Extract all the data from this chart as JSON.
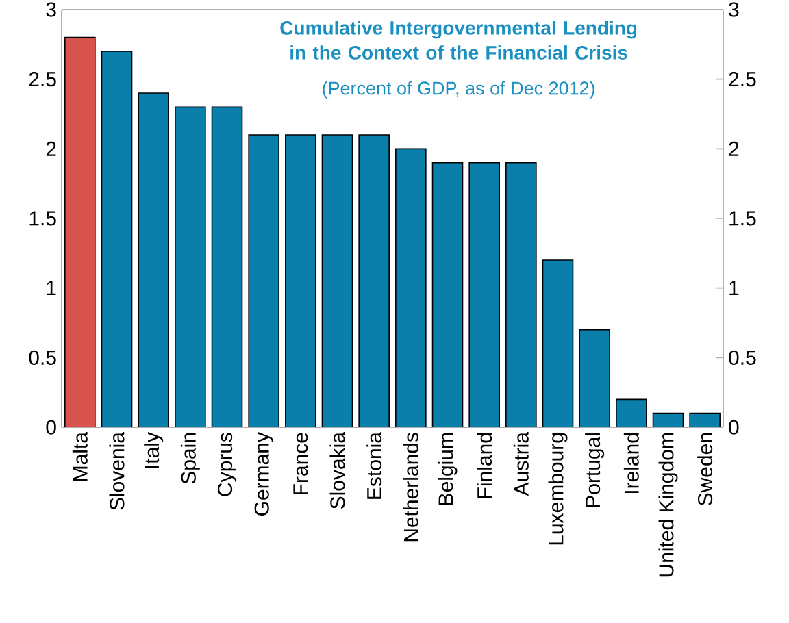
{
  "chart_data": {
    "type": "bar",
    "title": "Cumulative Intergovernmental Lending in the Context of the Financial Crisis",
    "subtitle": "(Percent of GDP, as of Dec 2012)",
    "categories": [
      "Malta",
      "Slovenia",
      "Italy",
      "Spain",
      "Cyprus",
      "Germany",
      "France",
      "Slovakia",
      "Estonia",
      "Netherlands",
      "Belgium",
      "Finland",
      "Austria",
      "Luxembourg",
      "Portugal",
      "Ireland",
      "United Kingdom",
      "Sweden"
    ],
    "values": [
      2.8,
      2.7,
      2.4,
      2.3,
      2.3,
      2.1,
      2.1,
      2.1,
      2.1,
      2.0,
      1.9,
      1.9,
      1.9,
      1.2,
      0.7,
      0.2,
      0.1,
      0.1
    ],
    "colors": [
      "#d9534f",
      "#0a7fac",
      "#0a7fac",
      "#0a7fac",
      "#0a7fac",
      "#0a7fac",
      "#0a7fac",
      "#0a7fac",
      "#0a7fac",
      "#0a7fac",
      "#0a7fac",
      "#0a7fac",
      "#0a7fac",
      "#0a7fac",
      "#0a7fac",
      "#0a7fac",
      "#0a7fac",
      "#0a7fac"
    ],
    "ylim": [
      0,
      3
    ],
    "yticks": [
      0,
      0.5,
      1,
      1.5,
      2,
      2.5,
      3
    ],
    "y2lim": [
      0,
      3
    ],
    "y2ticks": [
      0,
      0.5,
      1,
      1.5,
      2,
      2.5,
      3
    ]
  }
}
